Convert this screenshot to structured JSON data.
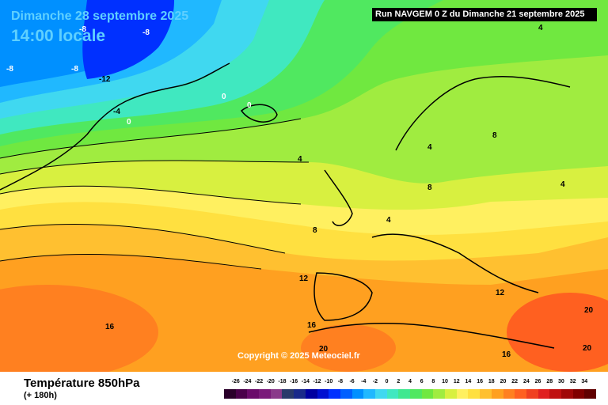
{
  "header": {
    "date": "Dimanche 28 septembre 2025",
    "time": "14:00 locale",
    "run": "Run NAVGEM 0 Z du Dimanche 21 septembre 2025"
  },
  "map": {
    "copyright": "Copyright © 2025 Meteociel.fr",
    "contour_labels": [
      "-8",
      "-8",
      "-8",
      "-8",
      "-12",
      "-4",
      "0",
      "0",
      "0",
      "4",
      "4",
      "4",
      "4",
      "4",
      "8",
      "8",
      "8",
      "12",
      "12",
      "16",
      "16",
      "16",
      "20",
      "20",
      "20"
    ]
  },
  "footer": {
    "parameter": "Température 850hPa",
    "lead_time": "(+ 180h)"
  },
  "legend": {
    "labels": [
      "-26",
      "-24",
      "-22",
      "-20",
      "-18",
      "-16",
      "-14",
      "-12",
      "-10",
      "-8",
      "-6",
      "-4",
      "-2",
      "0",
      "2",
      "4",
      "6",
      "8",
      "10",
      "12",
      "14",
      "16",
      "18",
      "20",
      "22",
      "24",
      "26",
      "28",
      "30",
      "32",
      "34"
    ],
    "colors": [
      "#2a002a",
      "#4a004a",
      "#6a0a6a",
      "#7a1a7a",
      "#8a3a8a",
      "#2a3a6a",
      "#1a2a8a",
      "#0000a0",
      "#0010d0",
      "#0030ff",
      "#0060ff",
      "#0090ff",
      "#20b8ff",
      "#40d8f0",
      "#40e8c0",
      "#40e890",
      "#50e860",
      "#70e840",
      "#a0ec40",
      "#d8f040",
      "#fff060",
      "#ffe040",
      "#ffc030",
      "#ffa020",
      "#ff8020",
      "#ff6020",
      "#f04020",
      "#e02020",
      "#c01010",
      "#a00808",
      "#800000",
      "#600000"
    ]
  }
}
